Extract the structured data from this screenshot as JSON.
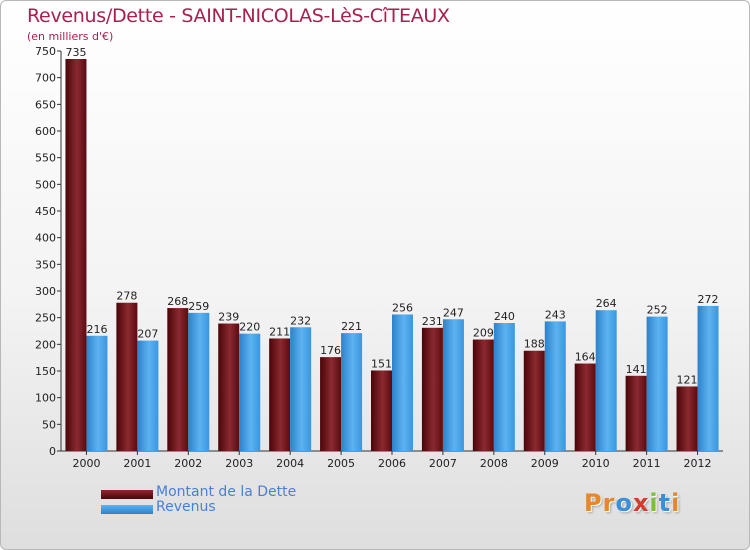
{
  "chart_data": {
    "type": "bar",
    "title": "Revenus/Dette - SAINT-NICOLAS-LèS-CîTEAUX",
    "subtitle": "(en milliers d'€)",
    "categories": [
      "2000",
      "2001",
      "2002",
      "2003",
      "2004",
      "2005",
      "2006",
      "2007",
      "2008",
      "2009",
      "2010",
      "2011",
      "2012"
    ],
    "series": [
      {
        "name": "Montant de la Dette",
        "color": "#6b0f16",
        "values": [
          735,
          278,
          268,
          239,
          211,
          176,
          151,
          231,
          209,
          188,
          164,
          141,
          121
        ]
      },
      {
        "name": "Revenus",
        "color": "#3a96e0",
        "values": [
          216,
          207,
          259,
          220,
          232,
          221,
          256,
          247,
          240,
          243,
          264,
          252,
          272
        ]
      }
    ],
    "yticks": [
      0,
      50,
      100,
      150,
      200,
      250,
      300,
      350,
      400,
      450,
      500,
      550,
      600,
      650,
      700,
      750
    ],
    "ylim": [
      0,
      750
    ],
    "grid": false,
    "legend_position": "bottom-left",
    "xlabel": "",
    "ylabel": ""
  },
  "brand": {
    "name": "Proxiti",
    "letters": [
      "P",
      "r",
      "o",
      "x",
      "i",
      "t",
      "i"
    ],
    "letter_colors": [
      "#e8862a",
      "#e8862a",
      "#3b8fd9",
      "#d83a2a",
      "#7cbf3a",
      "#3b8fd9",
      "#e8862a"
    ]
  }
}
